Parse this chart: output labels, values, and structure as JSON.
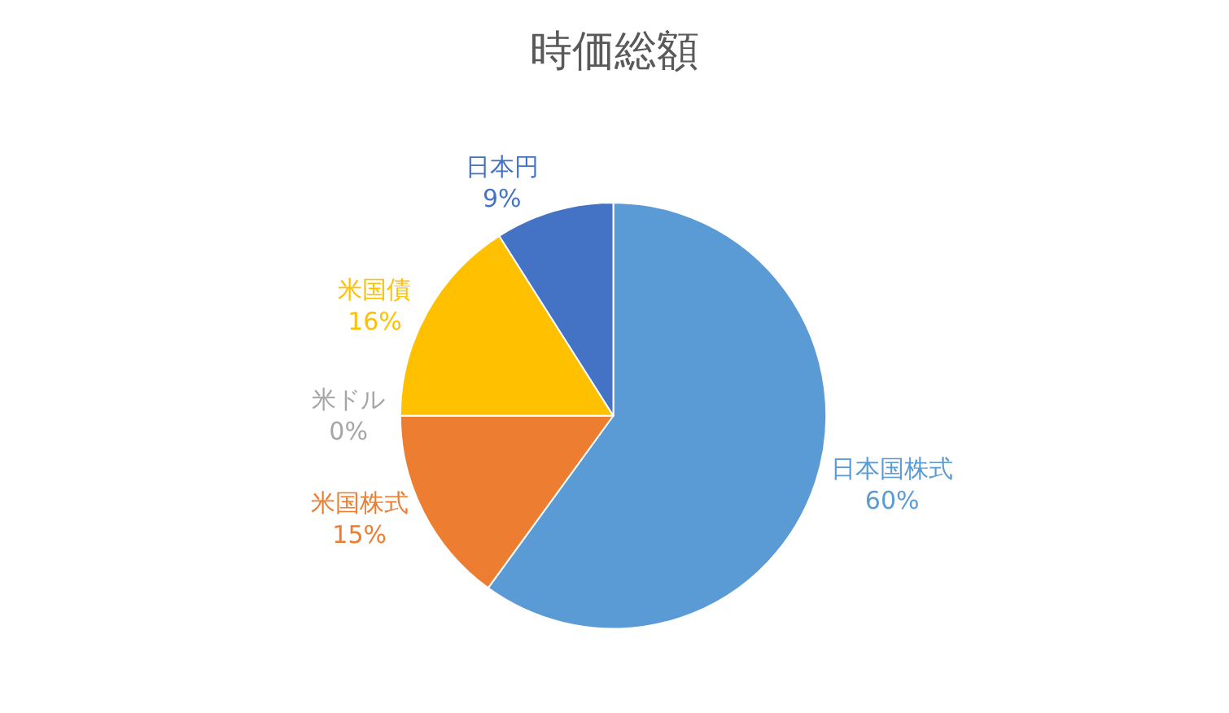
{
  "chart_data": {
    "type": "pie",
    "title": "時価総額",
    "categories": [
      "日本国株式",
      "米国株式",
      "米ドル",
      "米国債",
      "日本円"
    ],
    "values": [
      60,
      15,
      0,
      16,
      9
    ],
    "value_labels": [
      "60%",
      "15%",
      "0%",
      "16%",
      "9%"
    ],
    "colors": [
      "#5b9bd5",
      "#ed7d31",
      "#a5a5a5",
      "#ffc000",
      "#4472c4"
    ],
    "legend": false
  }
}
